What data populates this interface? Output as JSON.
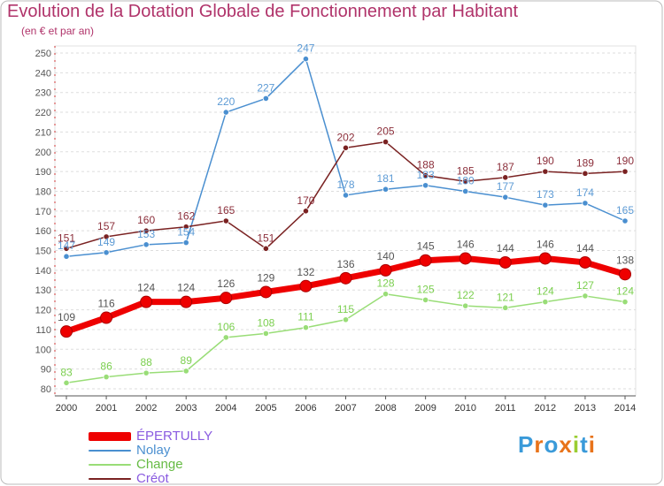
{
  "title": "Evolution de la Dotation Globale de Fonctionnement par Habitant",
  "subtitle": "(en € et par an)",
  "logo": "Proxiti",
  "colors": {
    "title": "#b0336a",
    "axis": "#555555",
    "grid": "#dddddd",
    "frame": "#bbbbbb"
  },
  "chart_data": {
    "type": "line",
    "x": [
      "2000",
      "2001",
      "2002",
      "2003",
      "2004",
      "2005",
      "2006",
      "2007",
      "2008",
      "2009",
      "2010",
      "2011",
      "2012",
      "2013",
      "2014"
    ],
    "ylim": [
      80,
      250
    ],
    "yticks": [
      80,
      90,
      100,
      110,
      120,
      130,
      140,
      150,
      160,
      170,
      180,
      190,
      200,
      210,
      220,
      230,
      240,
      250
    ],
    "grid": "horizontal",
    "legend_position": "bottom-left",
    "series": [
      {
        "name": "ÉPERTULLY",
        "color": "#ee0000",
        "label_color": "#555555",
        "highlight": true,
        "values": [
          109,
          116,
          124,
          124,
          126,
          129,
          132,
          136,
          140,
          145,
          146,
          144,
          146,
          144,
          138
        ]
      },
      {
        "name": "Nolay",
        "color": "#4a8fd0",
        "label_color": "#5d9bd5",
        "highlight": false,
        "values": [
          147,
          149,
          153,
          154,
          220,
          227,
          247,
          178,
          181,
          183,
          180,
          177,
          173,
          174,
          165
        ]
      },
      {
        "name": "Change",
        "color": "#99dd77",
        "label_color": "#7bcf4f",
        "highlight": false,
        "values": [
          83,
          86,
          88,
          89,
          106,
          108,
          111,
          115,
          128,
          125,
          122,
          121,
          124,
          127,
          124
        ]
      },
      {
        "name": "Créot",
        "color": "#7a2222",
        "label_color": "#8b2e3a",
        "highlight": false,
        "values": [
          151,
          157,
          160,
          162,
          165,
          151,
          170,
          202,
          205,
          188,
          185,
          187,
          190,
          189,
          190
        ]
      }
    ]
  }
}
